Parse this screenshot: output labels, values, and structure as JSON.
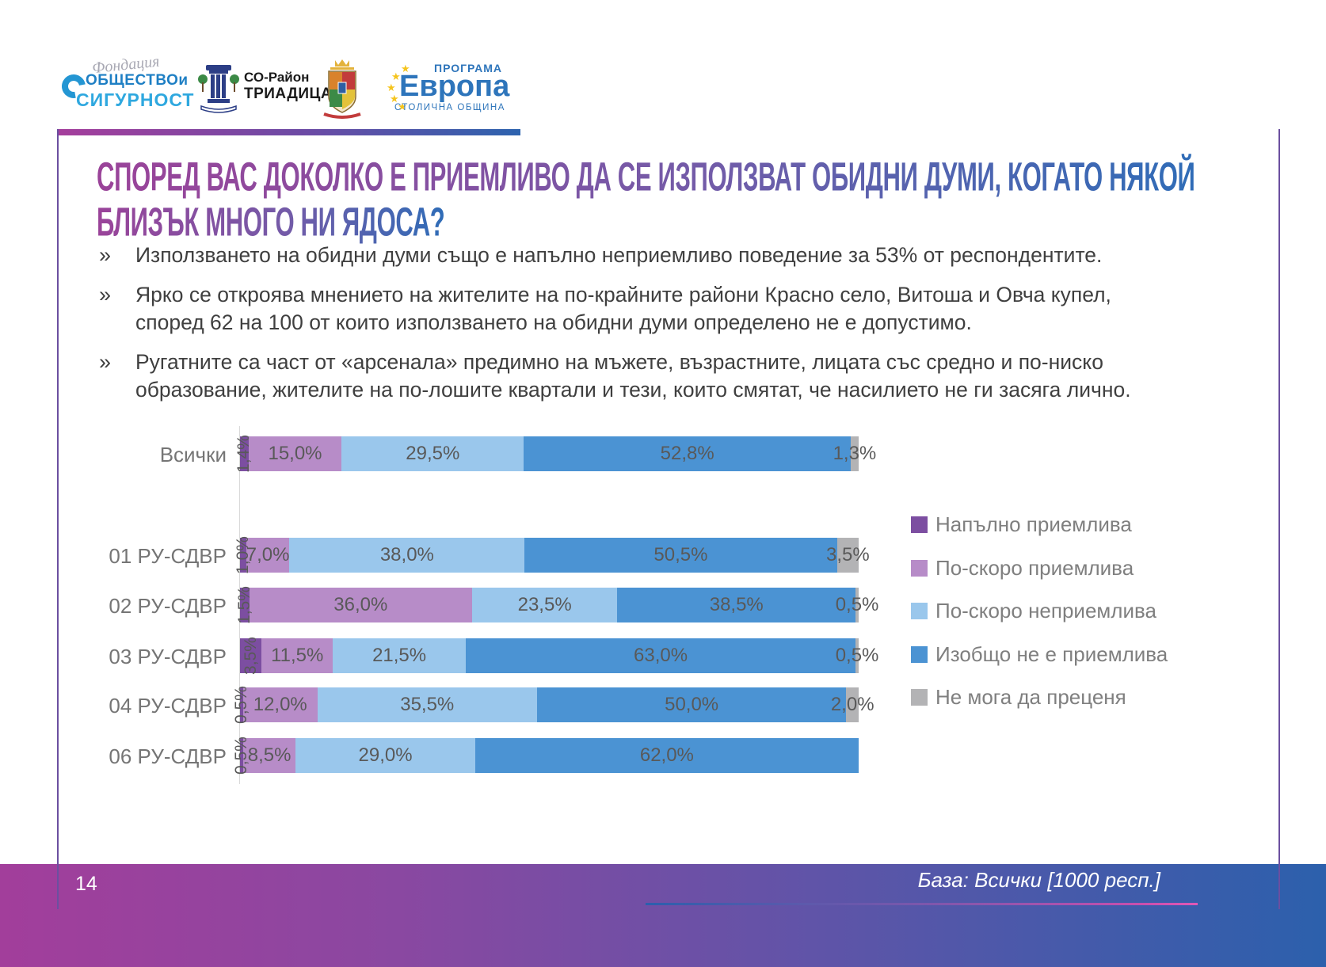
{
  "logos": {
    "foundation": {
      "script": "Фондация",
      "line1": "ОБЩЕСТВОи",
      "line2": "СИГУРНОСТ"
    },
    "triaditsa": {
      "line1": "СО-Район",
      "line2": "ТРИАДИЦА"
    },
    "sofia": {
      "name": "Столична община"
    },
    "evropa": {
      "top": "ПРОГРАМА",
      "main": "Европа",
      "bottom": "СТОЛИЧНА ОБЩИНА"
    }
  },
  "title": {
    "line1": "СПОРЕД ВАС ДОКОЛКО Е ПРИЕМЛИВО ДА СЕ ИЗПОЛЗВАТ ОБИДНИ ДУМИ, КОГАТО НЯКОЙ",
    "line2": "БЛИЗЪК МНОГО НИ ЯДОСА?"
  },
  "bullet_marker": "»",
  "bullets": [
    "Използването на обидни думи също е напълно неприемливо поведение за 53% от респондентите.",
    "Ярко се откроява мнението на жителите на по-крайните райони Красно село, Витоша и Овча купел, според  62 на 100 от които използването на обидни думи определено не е допустимо.",
    "Ругатните са част от «арсенала» предимно на мъжете, възрастните, лицата със средно и по-ниско образование, жителите на по-лошите квартали и тези, които смятат, че насилието не ги засяга лично."
  ],
  "chart_data": {
    "type": "bar",
    "orientation": "horizontal-stacked",
    "xlim": [
      0,
      100
    ],
    "grid": false,
    "legend_position": "right",
    "categories": [
      "Всички",
      "01 РУ-СДВР",
      "02 РУ-СДВР",
      "03 РУ-СДВР",
      "04 РУ-СДВР",
      "06 РУ-СДВР"
    ],
    "series": [
      {
        "name": "Напълно приемлива",
        "color": "#7c4ea1",
        "values": [
          1.4,
          1.0,
          1.5,
          3.5,
          0.5,
          0.5
        ],
        "labels": [
          "1,4%",
          "1,0%",
          "1,5%",
          "3,5%",
          "0,5%",
          "0,5%"
        ]
      },
      {
        "name": "По-скоро приемлива",
        "color": "#b78cc8",
        "values": [
          15.0,
          7.0,
          36.0,
          11.5,
          12.0,
          8.5
        ],
        "labels": [
          "15,0%",
          "7,0%",
          "36,0%",
          "11,5%",
          "12,0%",
          "8,5%"
        ]
      },
      {
        "name": "По-скоро неприемлива",
        "color": "#9ac7ec",
        "values": [
          29.5,
          38.0,
          23.5,
          21.5,
          35.5,
          29.0
        ],
        "labels": [
          "29,5%",
          "38,0%",
          "23,5%",
          "21,5%",
          "35,5%",
          "29,0%"
        ]
      },
      {
        "name": "Изобщо не е приемлива",
        "color": "#4b93d3",
        "values": [
          52.8,
          50.5,
          38.5,
          63.0,
          50.0,
          62.0
        ],
        "labels": [
          "52,8%",
          "50,5%",
          "38,5%",
          "63,0%",
          "50,0%",
          "62,0%"
        ]
      },
      {
        "name": "Не мога да преценя",
        "color": "#b3b3b5",
        "values": [
          1.3,
          3.5,
          0.5,
          0.5,
          2.0,
          0.0
        ],
        "labels": [
          "1,3%",
          "3,5%",
          "0,5%",
          "0,5%",
          "2,0%",
          ""
        ]
      }
    ]
  },
  "footer": {
    "page": "14",
    "base_note": "База: Всички [1000 респ.]"
  }
}
